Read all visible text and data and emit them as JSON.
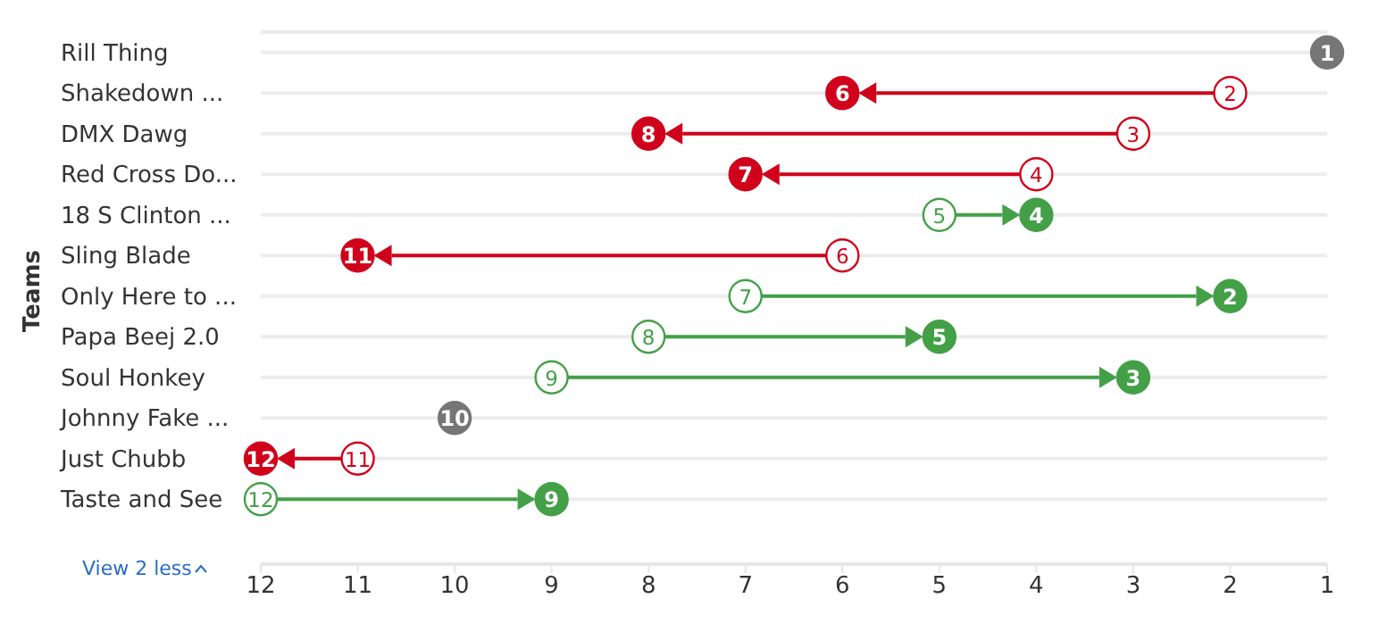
{
  "chart_data": {
    "type": "scatter",
    "orientation": "horizontal",
    "ylabel": "Teams",
    "categories": [
      "Rill Thing",
      "Shakedown ...",
      "DMX Dawg",
      "Red Cross Do...",
      "18 S Clinton ...",
      "Sling Blade",
      "Only Here to ...",
      "Papa Beej 2.0",
      "Soul Honkey",
      "Johnny Fake ...",
      "Just Chubb",
      "Taste and See"
    ],
    "series": [
      {
        "values": [
          null,
          2,
          3,
          4,
          5,
          6,
          7,
          8,
          9,
          null,
          11,
          12
        ],
        "colors": [
          "#767676",
          "#d0021b",
          "#d0021b",
          "#d0021b",
          "#43a047",
          "#d0021b",
          "#43a047",
          "#43a047",
          "#43a047",
          "#767676",
          "#d0021b",
          "#43a047"
        ]
      },
      {
        "values": [
          1,
          6,
          8,
          7,
          4,
          11,
          2,
          5,
          3,
          10,
          12,
          9
        ],
        "colors": [
          "#767676",
          "#d0021b",
          "#d0021b",
          "#d0021b",
          "#43a047",
          "#d0021b",
          "#43a047",
          "#43a047",
          "#43a047",
          "#767676",
          "#d0021b",
          "#43a047"
        ]
      }
    ],
    "xlim": [
      12,
      1
    ],
    "xticks": [
      12,
      11,
      10,
      9,
      8,
      7,
      6,
      5,
      4,
      3,
      2,
      1
    ],
    "grid": "y",
    "marker": "circle",
    "data_labels": true,
    "annotations": [
      "View 2 less"
    ]
  }
}
